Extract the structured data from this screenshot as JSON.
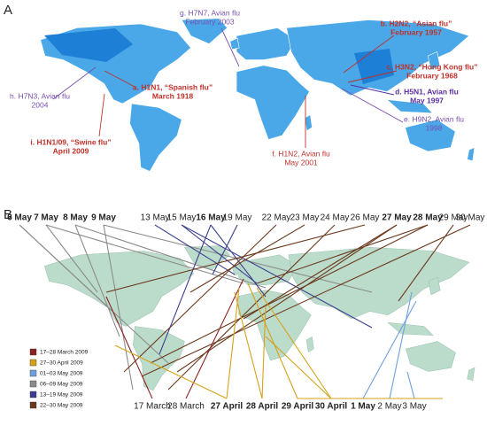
{
  "panel_a": {
    "label": "A",
    "annotations": [
      {
        "line1": "g. H7N7, Avian flu",
        "line2": "February 2003",
        "color": "#7a4fb0",
        "bold": false
      },
      {
        "line1": "b. H2N2, “Asian flu”",
        "line2": "February 1957",
        "color": "#c0302a",
        "bold": true
      },
      {
        "line1": "c. H3N2, “Hong Kong flu”",
        "line2": "February 1968",
        "color": "#c0302a",
        "bold": true
      },
      {
        "line1": "d. H5N1, Avian flu",
        "line2": "May 1997",
        "color": "#5a2ea0",
        "bold": true
      },
      {
        "line1": "e. H9N2, Avian flu",
        "line2": "1998",
        "color": "#7a4fb0",
        "bold": false
      },
      {
        "line1": "f. H1N2, Avian flu",
        "line2": "May 2001",
        "color": "#c0302a",
        "bold": false
      },
      {
        "line1": "a. H1N1, “Spanish flu”",
        "line2": "March 1918",
        "color": "#c0302a",
        "bold": true
      },
      {
        "line1": "h. H7N3, Avian flu",
        "line2": "2004",
        "color": "#7a4fb0",
        "bold": false
      },
      {
        "line1": "i. H1N1/09, “Swine flu”",
        "line2": "April 2009",
        "color": "#c0302a",
        "bold": true
      }
    ]
  },
  "panel_b": {
    "label": "B",
    "top_dates": [
      {
        "text": "6 May",
        "bold": true
      },
      {
        "text": "7 May",
        "bold": true
      },
      {
        "text": "8 May",
        "bold": true
      },
      {
        "text": "9 May",
        "bold": true
      },
      {
        "text": "13 May",
        "bold": false
      },
      {
        "text": "15 May",
        "bold": false
      },
      {
        "text": "16 May",
        "bold": true
      },
      {
        "text": "19 May",
        "bold": false
      },
      {
        "text": "22 May",
        "bold": false
      },
      {
        "text": "23 May",
        "bold": false
      },
      {
        "text": "24 May",
        "bold": false
      },
      {
        "text": "26 May",
        "bold": false
      },
      {
        "text": "27 May",
        "bold": true
      },
      {
        "text": "28 May",
        "bold": true
      },
      {
        "text": "29 May",
        "bold": false
      },
      {
        "text": "30 May",
        "bold": false
      }
    ],
    "bottom_dates": [
      {
        "text": "17 March",
        "bold": false
      },
      {
        "text": "28 March",
        "bold": false
      },
      {
        "text": "27 April",
        "bold": true
      },
      {
        "text": "28 April",
        "bold": true
      },
      {
        "text": "29 April",
        "bold": true
      },
      {
        "text": "30 April",
        "bold": true
      },
      {
        "text": "1 May",
        "bold": true
      },
      {
        "text": "2 May",
        "bold": false
      },
      {
        "text": "3 May",
        "bold": false
      }
    ],
    "legend": [
      {
        "label": "17–28 March 2009",
        "color": "#8b2323"
      },
      {
        "label": "27–30 April 2009",
        "color": "#d4a21a"
      },
      {
        "label": "01–03 May 2009",
        "color": "#6f9fdc"
      },
      {
        "label": "06–09 May 2009",
        "color": "#8c8c8c"
      },
      {
        "label": "13–19 May 2009",
        "color": "#3b3f8f"
      },
      {
        "label": "22–30 May 2009",
        "color": "#6b3a1f"
      }
    ]
  }
}
